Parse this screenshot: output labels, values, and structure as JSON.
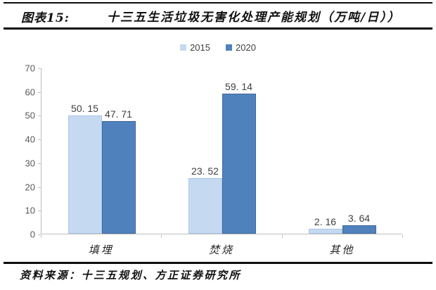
{
  "header": {
    "figure_label": "图表15:",
    "title": "十三五生活垃圾无害化处理产能规划（万吨/日））"
  },
  "footer": {
    "source": "资料来源：十三五规划、方正证券研究所"
  },
  "colors": {
    "series_2015": "#c5d9f1",
    "series_2015_border": "#aac6e8",
    "series_2020": "#4f81bd",
    "series_2020_border": "#41699c",
    "axis": "#bfbfbf",
    "rule": "#0d0d0d"
  },
  "chart_data": {
    "type": "bar",
    "title": "十三五生活垃圾无害化处理产能规划（万吨/日）",
    "categories": [
      "填埋",
      "焚烧",
      "其他"
    ],
    "series": [
      {
        "name": "2015",
        "values": [
          50.15,
          23.52,
          2.16
        ],
        "labels": [
          "50. 15",
          "23. 52",
          "2. 16"
        ],
        "color": "#c5d9f1",
        "border": "#aac6e8"
      },
      {
        "name": "2020",
        "values": [
          47.71,
          59.14,
          3.64
        ],
        "labels": [
          "47. 71",
          "59. 14",
          "3. 64"
        ],
        "color": "#4f81bd",
        "border": "#41699c"
      }
    ],
    "xlabel": "",
    "ylabel": "",
    "ylim": [
      0,
      70
    ],
    "yticks": [
      0,
      10,
      20,
      30,
      40,
      50,
      60,
      70
    ],
    "grid": false,
    "legend_position": "top-center",
    "data_labels": true
  }
}
